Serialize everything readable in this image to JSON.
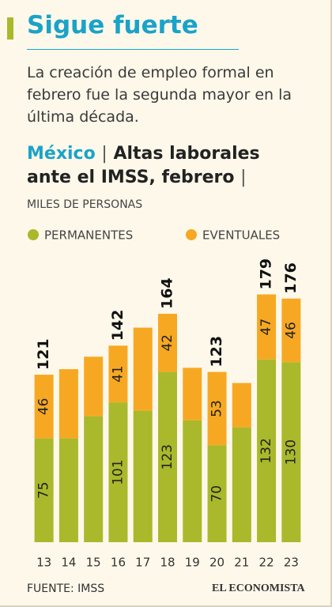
{
  "title": "Sigue fuerte",
  "subtitle": "La creación de empleo formal en febrero fue la segunda mayor en la última década.",
  "heading": [
    "México",
    "|",
    "Altas laborales ante el IMSS, febrero",
    "|"
  ],
  "source": "FUENTE: IMSS",
  "brand": "EL ECONOMISTA",
  "chart_data": {
    "type": "stacked_bar",
    "y_label": "MILES DE PERSONAS",
    "categories": [
      "13",
      "14",
      "15",
      "16",
      "17",
      "18",
      "19",
      "20",
      "21",
      "22",
      "23"
    ],
    "series": [
      {
        "name": "PERMANENTES",
        "color": "#a9b92b",
        "values": [
          75,
          75,
          91,
          101,
          95,
          123,
          88,
          70,
          83,
          132,
          130
        ],
        "value_labels": [
          "75",
          null,
          null,
          "101",
          null,
          "123",
          null,
          "70",
          null,
          "132",
          "130"
        ]
      },
      {
        "name": "EVENTUALES",
        "color": "#f7a823",
        "values": [
          46,
          50,
          43,
          41,
          60,
          42,
          38,
          53,
          32,
          47,
          46
        ],
        "value_labels": [
          "46",
          null,
          null,
          "41",
          null,
          "42",
          null,
          "53",
          null,
          "47",
          "46"
        ]
      }
    ],
    "totals": [
      121,
      null,
      null,
      142,
      null,
      164,
      null,
      123,
      null,
      179,
      176
    ],
    "ylim": [
      0,
      185
    ],
    "legend": "top-left"
  }
}
